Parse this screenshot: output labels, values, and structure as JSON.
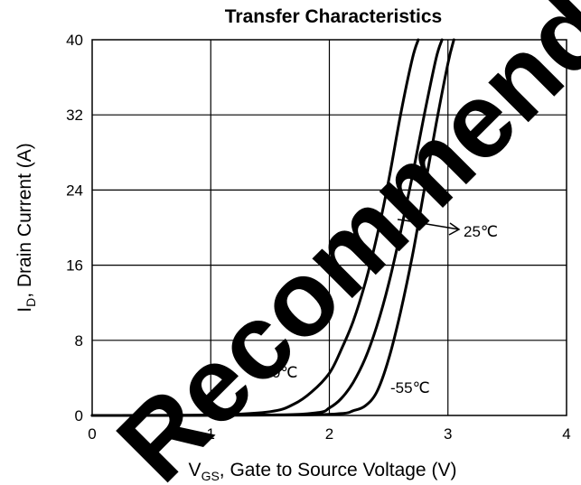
{
  "chart_data": {
    "type": "line",
    "title": "Transfer Characteristics",
    "xlabel": {
      "main": "V",
      "sub": "GS",
      "rest": ", Gate to Source Voltage (V)"
    },
    "ylabel": {
      "main": "I",
      "sub": "D",
      "rest": ", Drain Current (A)"
    },
    "xlim": [
      0,
      4
    ],
    "ylim": [
      0,
      40
    ],
    "xticks": [
      "0",
      "1",
      "2",
      "3",
      "4"
    ],
    "yticks": [
      "0",
      "8",
      "16",
      "24",
      "32",
      "40"
    ],
    "grid": true,
    "series": [
      {
        "name": "150℃",
        "x": [
          0,
          1.0,
          1.5,
          1.7,
          1.85,
          2.0,
          2.1,
          2.2,
          2.3,
          2.4,
          2.5,
          2.6,
          2.7,
          2.75
        ],
        "y": [
          0,
          0.05,
          0.4,
          1.2,
          2.5,
          4.5,
          7,
          10,
          14,
          19,
          25,
          32,
          38,
          40
        ]
      },
      {
        "name": "25℃",
        "x": [
          0,
          1.5,
          1.9,
          2.0,
          2.1,
          2.2,
          2.3,
          2.4,
          2.5,
          2.6,
          2.7,
          2.8,
          2.9,
          2.95
        ],
        "y": [
          0,
          0.05,
          0.3,
          0.8,
          1.8,
          3.5,
          6,
          9.5,
          14,
          19.5,
          25.5,
          32,
          38,
          40
        ]
      },
      {
        "name": "-55℃",
        "x": [
          0,
          1.7,
          2.1,
          2.2,
          2.3,
          2.4,
          2.5,
          2.6,
          2.7,
          2.8,
          2.9,
          3.0,
          3.05
        ],
        "y": [
          0,
          0.05,
          0.2,
          0.5,
          1.0,
          2.5,
          6,
          11,
          17,
          24,
          31,
          37.5,
          40
        ]
      }
    ],
    "annotations": [
      {
        "text": "150℃",
        "series": "150℃"
      },
      {
        "text": "25℃",
        "series": "25℃"
      },
      {
        "text": "-55℃",
        "series": "-55℃"
      }
    ]
  },
  "watermark": {
    "text": "Recommended"
  }
}
